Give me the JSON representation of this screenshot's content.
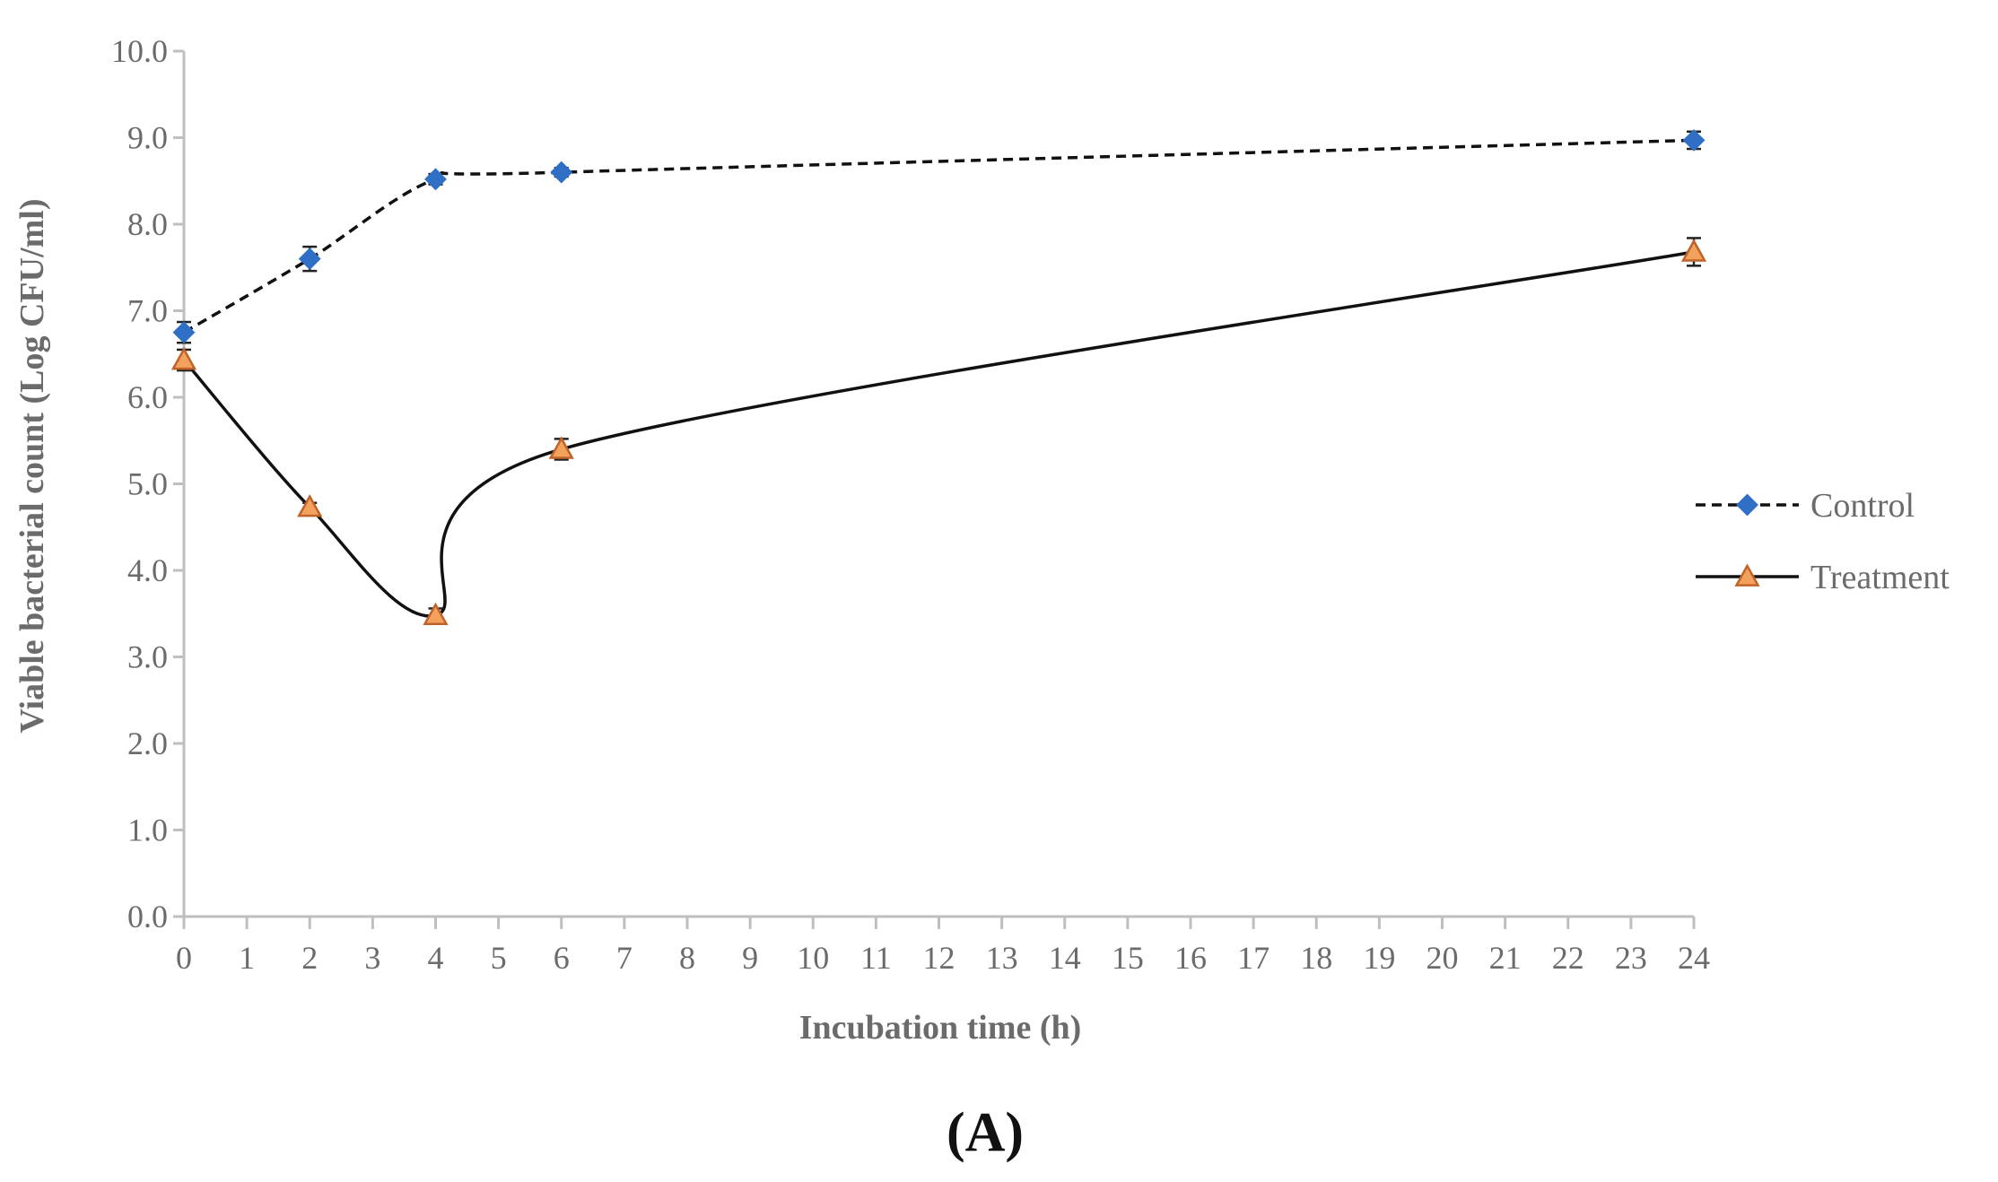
{
  "chart_data": {
    "type": "line",
    "title": "",
    "xlabel": "Incubation time (h)",
    "ylabel": "Viable bacterial count (Log CFU/ml)",
    "panel_label": "(A)",
    "xlim": [
      0,
      24
    ],
    "ylim": [
      0,
      10
    ],
    "x_ticks": [
      0,
      1,
      2,
      3,
      4,
      5,
      6,
      7,
      8,
      9,
      10,
      11,
      12,
      13,
      14,
      15,
      16,
      17,
      18,
      19,
      20,
      21,
      22,
      23,
      24
    ],
    "y_ticks": [
      "0.0",
      "1.0",
      "2.0",
      "3.0",
      "4.0",
      "5.0",
      "6.0",
      "7.0",
      "8.0",
      "9.0",
      "10.0"
    ],
    "grid": false,
    "legend_position": "right",
    "series": [
      {
        "name": "Control",
        "line_style": "dashed",
        "marker": "diamond",
        "color": "#2f6fc6",
        "x": [
          0,
          2,
          4,
          6,
          24
        ],
        "y": [
          6.75,
          7.6,
          8.52,
          8.6,
          8.97
        ],
        "err": [
          0.12,
          0.14,
          0.06,
          0.05,
          0.1
        ]
      },
      {
        "name": "Treatment",
        "line_style": "solid",
        "marker": "triangle",
        "color": "#f2a25c",
        "x": [
          0,
          2,
          4,
          6,
          24
        ],
        "y": [
          6.43,
          4.73,
          3.48,
          5.4,
          7.68
        ],
        "err": [
          0.12,
          0.05,
          0.08,
          0.12,
          0.16
        ]
      }
    ]
  }
}
